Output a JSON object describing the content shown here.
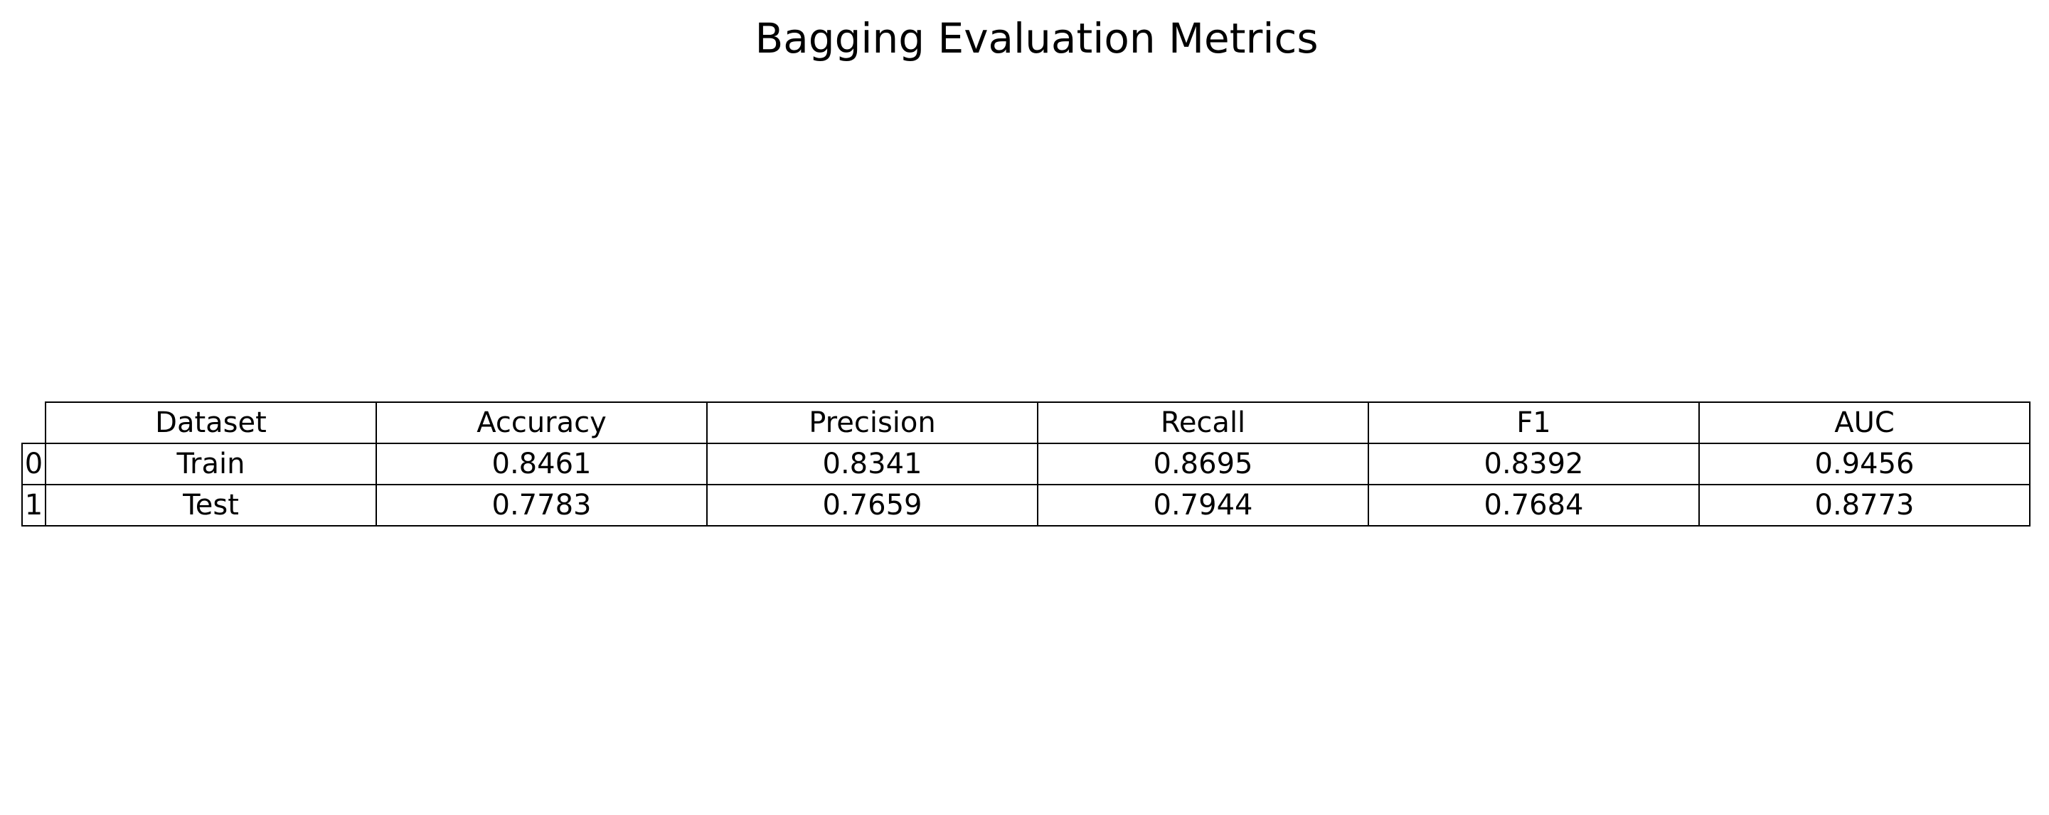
{
  "chart_data": {
    "type": "table",
    "title": "Bagging Evaluation Metrics",
    "columns": [
      "Dataset",
      "Accuracy",
      "Precision",
      "Recall",
      "F1",
      "AUC"
    ],
    "rows": [
      {
        "index": "0",
        "cells": [
          "Train",
          "0.8461",
          "0.8341",
          "0.8695",
          "0.8392",
          "0.9456"
        ]
      },
      {
        "index": "1",
        "cells": [
          "Test",
          "0.7783",
          "0.7659",
          "0.7944",
          "0.7684",
          "0.8773"
        ]
      }
    ]
  }
}
